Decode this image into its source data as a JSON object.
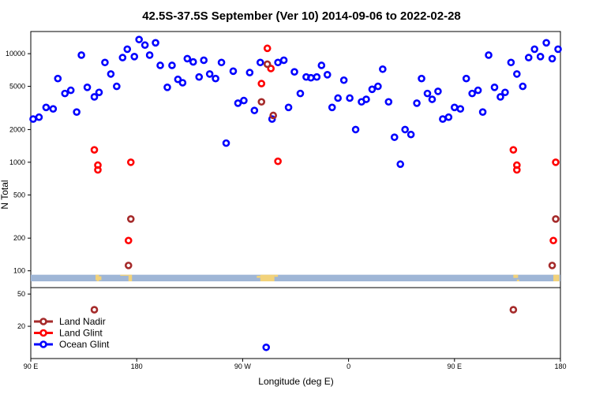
{
  "chart_data": {
    "type": "scatter",
    "title": "42.5S-37.5S September (Ver 10)   2014-09-06 to 2022-02-28",
    "xlabel": "Longitude (deg E)",
    "ylabel": "N Total",
    "x_ticks": [
      {
        "lon": 90,
        "label": "90 E"
      },
      {
        "lon": 180,
        "label": "180"
      },
      {
        "lon": 270,
        "label": "90 W"
      },
      {
        "lon": 360,
        "label": "0"
      },
      {
        "lon": 450,
        "label": "90 E"
      },
      {
        "lon": 540,
        "label": "180"
      }
    ],
    "xlim": [
      90,
      540
    ],
    "upper_panel": {
      "scale": "log",
      "ylim": [
        70,
        16000
      ],
      "y_ticks": [
        {
          "value": 100,
          "label": "100"
        },
        {
          "value": 200,
          "label": "200"
        },
        {
          "value": 500,
          "label": "500"
        },
        {
          "value": 1000,
          "label": "1000"
        },
        {
          "value": 2000,
          "label": "2000"
        },
        {
          "value": 5000,
          "label": "5000"
        },
        {
          "value": 10000,
          "label": "10000"
        }
      ],
      "band_color": "#9fb6d6",
      "band_range": [
        80,
        92
      ],
      "land_color": "#f2d27a",
      "land_patches": [
        {
          "x0": 145,
          "x1": 150,
          "y0": 82,
          "y1": 89
        },
        {
          "x0": 145,
          "x1": 148,
          "y0": 89,
          "y1": 92
        },
        {
          "x0": 146,
          "x1": 148,
          "y0": 80,
          "y1": 82
        },
        {
          "x0": 173,
          "x1": 176,
          "y0": 80,
          "y1": 92
        },
        {
          "x0": 166,
          "x1": 173,
          "y0": 90,
          "y1": 92
        },
        {
          "x0": 285,
          "x1": 297,
          "y0": 80,
          "y1": 92
        },
        {
          "x0": 297,
          "x1": 300,
          "y0": 88,
          "y1": 92
        },
        {
          "x0": 282,
          "x1": 285,
          "y0": 86,
          "y1": 90
        },
        {
          "x0": 500,
          "x1": 504,
          "y0": 86,
          "y1": 92
        },
        {
          "x0": 503,
          "x1": 505,
          "y0": 80,
          "y1": 83
        },
        {
          "x0": 534,
          "x1": 539,
          "y0": 80,
          "y1": 92
        }
      ]
    },
    "lower_panel": {
      "scale": "log",
      "ylim": [
        8,
        60
      ],
      "y_ticks": [
        {
          "value": 20,
          "label": "20"
        },
        {
          "value": 50,
          "label": "50"
        }
      ]
    },
    "series": [
      {
        "name": "Land Nadir",
        "color": "#a52a2a",
        "upper": [
          {
            "x": 173,
            "y": 112
          },
          {
            "x": 291,
            "y": 8000
          },
          {
            "x": 296,
            "y": 2700
          },
          {
            "x": 286,
            "y": 3600
          },
          {
            "x": 533,
            "y": 112
          },
          {
            "x": 536,
            "y": 300
          },
          {
            "x": 175,
            "y": 300
          }
        ],
        "lower": [
          {
            "x": 144,
            "y": 32
          },
          {
            "x": 500,
            "y": 32
          }
        ]
      },
      {
        "name": "Land Glint",
        "color": "#ff0000",
        "upper": [
          {
            "x": 144,
            "y": 1300
          },
          {
            "x": 147,
            "y": 940
          },
          {
            "x": 147,
            "y": 850
          },
          {
            "x": 173,
            "y": 190
          },
          {
            "x": 175,
            "y": 1000
          },
          {
            "x": 286,
            "y": 5300
          },
          {
            "x": 291,
            "y": 11200
          },
          {
            "x": 294,
            "y": 7300
          },
          {
            "x": 300,
            "y": 1020
          },
          {
            "x": 500,
            "y": 1300
          },
          {
            "x": 503,
            "y": 940
          },
          {
            "x": 503,
            "y": 850
          },
          {
            "x": 534,
            "y": 190
          },
          {
            "x": 536,
            "y": 1000
          }
        ],
        "lower": []
      },
      {
        "name": "Ocean Glint",
        "color": "#0000ff",
        "upper": [
          {
            "x": 92,
            "y": 2500
          },
          {
            "x": 97,
            "y": 2600
          },
          {
            "x": 103,
            "y": 3200
          },
          {
            "x": 109,
            "y": 3100
          },
          {
            "x": 113,
            "y": 5900
          },
          {
            "x": 119,
            "y": 4300
          },
          {
            "x": 124,
            "y": 4600
          },
          {
            "x": 129,
            "y": 2900
          },
          {
            "x": 133,
            "y": 9700
          },
          {
            "x": 138,
            "y": 4900
          },
          {
            "x": 144,
            "y": 4000
          },
          {
            "x": 148,
            "y": 4400
          },
          {
            "x": 153,
            "y": 8300
          },
          {
            "x": 158,
            "y": 6500
          },
          {
            "x": 163,
            "y": 5000
          },
          {
            "x": 168,
            "y": 9200
          },
          {
            "x": 172,
            "y": 11000
          },
          {
            "x": 178,
            "y": 9400
          },
          {
            "x": 182,
            "y": 13500
          },
          {
            "x": 187,
            "y": 12000
          },
          {
            "x": 191,
            "y": 9700
          },
          {
            "x": 196,
            "y": 12600
          },
          {
            "x": 200,
            "y": 7800
          },
          {
            "x": 206,
            "y": 4900
          },
          {
            "x": 210,
            "y": 7800
          },
          {
            "x": 215,
            "y": 5800
          },
          {
            "x": 219,
            "y": 5400
          },
          {
            "x": 223,
            "y": 9000
          },
          {
            "x": 228,
            "y": 8400
          },
          {
            "x": 233,
            "y": 6100
          },
          {
            "x": 237,
            "y": 8700
          },
          {
            "x": 242,
            "y": 6500
          },
          {
            "x": 247,
            "y": 5900
          },
          {
            "x": 252,
            "y": 8300
          },
          {
            "x": 256,
            "y": 1500
          },
          {
            "x": 266,
            "y": 3500
          },
          {
            "x": 262,
            "y": 6900
          },
          {
            "x": 271,
            "y": 3700
          },
          {
            "x": 276,
            "y": 6700
          },
          {
            "x": 280,
            "y": 3000
          },
          {
            "x": 285,
            "y": 8300
          },
          {
            "x": 295,
            "y": 2500
          },
          {
            "x": 300,
            "y": 8300
          },
          {
            "x": 305,
            "y": 8700
          },
          {
            "x": 309,
            "y": 3200
          },
          {
            "x": 314,
            "y": 6800
          },
          {
            "x": 319,
            "y": 4300
          },
          {
            "x": 324,
            "y": 6100
          },
          {
            "x": 328,
            "y": 6000
          },
          {
            "x": 333,
            "y": 6100
          },
          {
            "x": 337,
            "y": 7800
          },
          {
            "x": 342,
            "y": 6400
          },
          {
            "x": 346,
            "y": 3200
          },
          {
            "x": 351,
            "y": 3900
          },
          {
            "x": 356,
            "y": 5700
          },
          {
            "x": 361,
            "y": 3900
          },
          {
            "x": 366,
            "y": 2000
          },
          {
            "x": 371,
            "y": 3600
          },
          {
            "x": 375,
            "y": 3800
          },
          {
            "x": 380,
            "y": 4700
          },
          {
            "x": 385,
            "y": 5000
          },
          {
            "x": 389,
            "y": 7200
          },
          {
            "x": 394,
            "y": 3600
          },
          {
            "x": 399,
            "y": 1700
          },
          {
            "x": 404,
            "y": 960
          },
          {
            "x": 408,
            "y": 2000
          },
          {
            "x": 413,
            "y": 1800
          },
          {
            "x": 418,
            "y": 3500
          },
          {
            "x": 422,
            "y": 5900
          },
          {
            "x": 427,
            "y": 4300
          },
          {
            "x": 431,
            "y": 3800
          },
          {
            "x": 436,
            "y": 4500
          },
          {
            "x": 440,
            "y": 2500
          },
          {
            "x": 445,
            "y": 2600
          },
          {
            "x": 450,
            "y": 3200
          },
          {
            "x": 455,
            "y": 3100
          },
          {
            "x": 460,
            "y": 5900
          },
          {
            "x": 465,
            "y": 4300
          },
          {
            "x": 470,
            "y": 4600
          },
          {
            "x": 474,
            "y": 2900
          },
          {
            "x": 479,
            "y": 9700
          },
          {
            "x": 484,
            "y": 4900
          },
          {
            "x": 489,
            "y": 4000
          },
          {
            "x": 493,
            "y": 4400
          },
          {
            "x": 498,
            "y": 8300
          },
          {
            "x": 503,
            "y": 6500
          },
          {
            "x": 508,
            "y": 5000
          },
          {
            "x": 513,
            "y": 9200
          },
          {
            "x": 518,
            "y": 11000
          },
          {
            "x": 523,
            "y": 9400
          },
          {
            "x": 528,
            "y": 12600
          },
          {
            "x": 533,
            "y": 9000
          },
          {
            "x": 538,
            "y": 11000
          }
        ],
        "lower": [
          {
            "x": 290,
            "y": 11
          }
        ]
      }
    ],
    "legend": {
      "position": "bottom-left",
      "entries": [
        {
          "label": "Land Nadir",
          "color": "#a52a2a"
        },
        {
          "label": "Land Glint",
          "color": "#ff0000"
        },
        {
          "label": "Ocean Glint",
          "color": "#0000ff"
        }
      ]
    }
  }
}
